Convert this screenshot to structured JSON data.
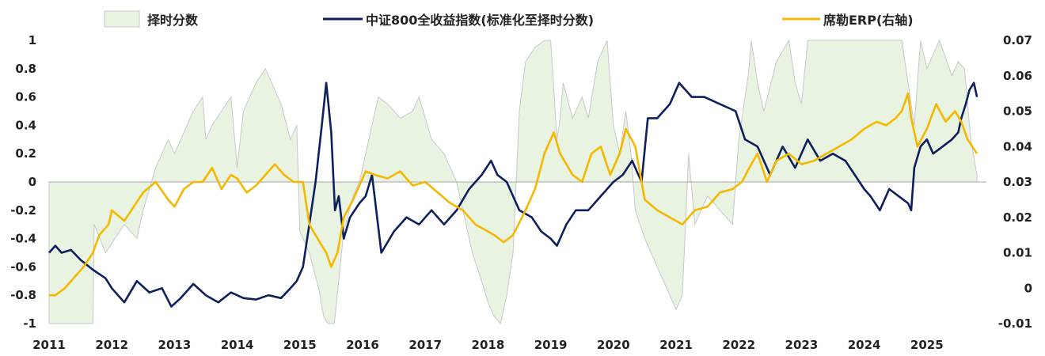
{
  "chart_data": {
    "type": "line",
    "title": "",
    "xlabel": "",
    "ylabel": "",
    "ylim": [
      -1,
      1
    ],
    "y2lim": [
      -0.01,
      0.07
    ],
    "grid": false,
    "legend_position": "top",
    "x_ticks": [
      "2011",
      "2012",
      "2013",
      "2014",
      "2015",
      "2016",
      "2017",
      "2018",
      "2019",
      "2020",
      "2021",
      "2022",
      "2023",
      "2024",
      "2025"
    ],
    "y_ticks": [
      "1",
      "0.8",
      "0.6",
      "0.4",
      "0.2",
      "0",
      "-0.2",
      "-0.4",
      "-0.6",
      "-0.8",
      "-1"
    ],
    "y2_ticks": [
      "0.07",
      "0.06",
      "0.05",
      "0.04",
      "0.03",
      "0.02",
      "0.01",
      "0",
      "-0.01"
    ],
    "colors": {
      "timing_fill": "#e8f3e2",
      "timing_stroke": "#c8c8c8",
      "csi800": "#0e1f5e",
      "erp": "#f5b800"
    },
    "series": [
      {
        "name": "择时分数",
        "kind": "area",
        "axis": "left",
        "x": [
          2011.0,
          2011.5,
          2011.7,
          2011.72,
          2011.9,
          2012.2,
          2012.4,
          2012.5,
          2012.7,
          2012.9,
          2013.0,
          2013.3,
          2013.45,
          2013.5,
          2013.6,
          2013.75,
          2013.9,
          2014.0,
          2014.1,
          2014.3,
          2014.45,
          2014.55,
          2014.7,
          2014.85,
          2014.95,
          2015.0,
          2015.15,
          2015.3,
          2015.38,
          2015.45,
          2015.55,
          2015.7,
          2015.85,
          2015.95,
          2016.1,
          2016.25,
          2016.4,
          2016.6,
          2016.8,
          2016.9,
          2017.0,
          2017.1,
          2017.3,
          2017.5,
          2017.6,
          2017.75,
          2017.9,
          2018.0,
          2018.1,
          2018.2,
          2018.3,
          2018.4,
          2018.5,
          2018.6,
          2018.75,
          2018.9,
          2019.0,
          2019.1,
          2019.15,
          2019.2,
          2019.35,
          2019.5,
          2019.6,
          2019.75,
          2019.9,
          2020.0,
          2020.1,
          2020.2,
          2020.28,
          2020.35,
          2020.5,
          2020.6,
          2020.7,
          2020.85,
          2021.0,
          2021.1,
          2021.15,
          2021.2,
          2021.3,
          2021.5,
          2021.7,
          2021.9,
          2022.0,
          2022.15,
          2022.2,
          2022.3,
          2022.4,
          2022.6,
          2022.8,
          2022.9,
          2023.0,
          2023.1,
          2023.3,
          2023.5,
          2023.6,
          2023.8,
          2024.0,
          2024.2,
          2024.4,
          2024.6,
          2024.8,
          2024.9,
          2025.0,
          2025.2,
          2025.4,
          2025.5,
          2025.6,
          2025.7,
          2025.8
        ],
        "values": [
          -1,
          -1,
          -1,
          -0.3,
          -0.5,
          -0.3,
          -0.4,
          -0.2,
          0.1,
          0.3,
          0.2,
          0.5,
          0.6,
          0.3,
          0.4,
          0.5,
          0.6,
          0.1,
          0.5,
          0.7,
          0.8,
          0.7,
          0.55,
          0.3,
          0.4,
          -0.35,
          -0.5,
          -0.75,
          -0.95,
          -1,
          -1,
          -0.35,
          -0.1,
          0.0,
          0.3,
          0.6,
          0.55,
          0.45,
          0.5,
          0.6,
          0.45,
          0.3,
          0.2,
          0.0,
          -0.2,
          -0.5,
          -0.7,
          -0.85,
          -0.95,
          -1,
          -0.8,
          -0.5,
          0.5,
          0.85,
          0.95,
          1,
          1,
          0.3,
          0.45,
          0.7,
          0.45,
          0.6,
          0.45,
          0.85,
          1,
          0.4,
          0.2,
          0.5,
          0.2,
          -0.2,
          -0.4,
          -0.5,
          -0.6,
          -0.75,
          -0.9,
          -0.8,
          -0.3,
          0.2,
          -0.3,
          -0.1,
          -0.2,
          -0.3,
          0.3,
          0.75,
          1,
          0.7,
          0.5,
          0.85,
          1,
          0.7,
          0.55,
          1,
          1,
          1,
          1,
          1,
          1,
          1,
          1,
          1,
          0.4,
          1,
          0.8,
          1,
          0.75,
          0.85,
          0.8,
          0.3,
          0.05
        ]
      },
      {
        "name": "中证800全收益指数(标准化至择时分数)",
        "kind": "line",
        "axis": "left",
        "x": [
          2011.0,
          2011.1,
          2011.2,
          2011.35,
          2011.5,
          2011.7,
          2011.9,
          2012.0,
          2012.2,
          2012.4,
          2012.6,
          2012.8,
          2012.95,
          2013.1,
          2013.3,
          2013.5,
          2013.7,
          2013.9,
          2014.1,
          2014.3,
          2014.5,
          2014.7,
          2014.85,
          2014.95,
          2015.05,
          2015.15,
          2015.25,
          2015.35,
          2015.42,
          2015.5,
          2015.56,
          2015.62,
          2015.7,
          2015.8,
          2015.95,
          2016.05,
          2016.15,
          2016.3,
          2016.5,
          2016.7,
          2016.9,
          2017.1,
          2017.3,
          2017.5,
          2017.7,
          2017.9,
          2018.05,
          2018.15,
          2018.3,
          2018.5,
          2018.7,
          2018.85,
          2019.0,
          2019.1,
          2019.25,
          2019.4,
          2019.6,
          2019.8,
          2020.0,
          2020.15,
          2020.3,
          2020.45,
          2020.55,
          2020.7,
          2020.9,
          2021.05,
          2021.15,
          2021.25,
          2021.45,
          2021.7,
          2021.95,
          2022.1,
          2022.3,
          2022.5,
          2022.7,
          2022.9,
          2023.1,
          2023.3,
          2023.5,
          2023.7,
          2023.85,
          2024.0,
          2024.1,
          2024.25,
          2024.4,
          2024.55,
          2024.7,
          2024.75,
          2024.8,
          2024.9,
          2025.0,
          2025.1,
          2025.25,
          2025.4,
          2025.5,
          2025.55,
          2025.62,
          2025.68,
          2025.75,
          2025.8
        ],
        "values": [
          -0.5,
          -0.45,
          -0.5,
          -0.48,
          -0.55,
          -0.62,
          -0.68,
          -0.75,
          -0.85,
          -0.7,
          -0.78,
          -0.75,
          -0.88,
          -0.82,
          -0.72,
          -0.8,
          -0.85,
          -0.78,
          -0.82,
          -0.83,
          -0.8,
          -0.82,
          -0.75,
          -0.7,
          -0.6,
          -0.3,
          0.0,
          0.4,
          0.7,
          0.35,
          -0.2,
          -0.1,
          -0.4,
          -0.25,
          -0.15,
          -0.1,
          0.05,
          -0.5,
          -0.35,
          -0.25,
          -0.3,
          -0.2,
          -0.3,
          -0.2,
          -0.05,
          0.05,
          0.15,
          0.05,
          0.0,
          -0.2,
          -0.25,
          -0.35,
          -0.4,
          -0.45,
          -0.3,
          -0.2,
          -0.2,
          -0.1,
          0.0,
          0.05,
          0.15,
          0.0,
          0.45,
          0.45,
          0.55,
          0.7,
          0.65,
          0.6,
          0.6,
          0.55,
          0.5,
          0.3,
          0.25,
          0.05,
          0.25,
          0.1,
          0.3,
          0.15,
          0.2,
          0.15,
          0.05,
          -0.05,
          -0.1,
          -0.2,
          -0.05,
          -0.1,
          -0.15,
          -0.2,
          0.1,
          0.25,
          0.3,
          0.2,
          0.25,
          0.3,
          0.35,
          0.45,
          0.55,
          0.65,
          0.7,
          0.6
        ]
      },
      {
        "name": "席勒ERP(右轴)",
        "kind": "line",
        "axis": "right",
        "x": [
          2011.0,
          2011.1,
          2011.25,
          2011.4,
          2011.55,
          2011.7,
          2011.8,
          2011.95,
          2012.0,
          2012.2,
          2012.35,
          2012.5,
          2012.7,
          2012.9,
          2013.0,
          2013.15,
          2013.3,
          2013.45,
          2013.6,
          2013.75,
          2013.9,
          2014.0,
          2014.15,
          2014.3,
          2014.45,
          2014.6,
          2014.75,
          2014.9,
          2015.05,
          2015.15,
          2015.25,
          2015.35,
          2015.42,
          2015.5,
          2015.6,
          2015.7,
          2015.85,
          2016.05,
          2016.2,
          2016.4,
          2016.6,
          2016.8,
          2017.0,
          2017.2,
          2017.4,
          2017.6,
          2017.8,
          2018.0,
          2018.1,
          2018.25,
          2018.4,
          2018.6,
          2018.75,
          2018.9,
          2019.05,
          2019.15,
          2019.35,
          2019.5,
          2019.65,
          2019.8,
          2019.95,
          2020.1,
          2020.2,
          2020.35,
          2020.45,
          2020.5,
          2020.7,
          2020.9,
          2021.1,
          2021.3,
          2021.5,
          2021.7,
          2021.9,
          2022.05,
          2022.2,
          2022.3,
          2022.45,
          2022.6,
          2022.8,
          2023.0,
          2023.2,
          2023.4,
          2023.6,
          2023.8,
          2024.0,
          2024.2,
          2024.35,
          2024.5,
          2024.6,
          2024.7,
          2024.75,
          2024.85,
          2025.0,
          2025.15,
          2025.3,
          2025.45,
          2025.55,
          2025.65,
          2025.8
        ],
        "values": [
          -0.002,
          -0.002,
          0.0,
          0.003,
          0.006,
          0.01,
          0.015,
          0.018,
          0.022,
          0.019,
          0.023,
          0.027,
          0.03,
          0.025,
          0.023,
          0.028,
          0.03,
          0.03,
          0.034,
          0.028,
          0.032,
          0.031,
          0.027,
          0.029,
          0.032,
          0.035,
          0.032,
          0.03,
          0.03,
          0.018,
          0.015,
          0.012,
          0.01,
          0.006,
          0.01,
          0.02,
          0.025,
          0.033,
          0.032,
          0.031,
          0.033,
          0.029,
          0.03,
          0.027,
          0.024,
          0.022,
          0.018,
          0.016,
          0.015,
          0.013,
          0.015,
          0.022,
          0.028,
          0.038,
          0.044,
          0.038,
          0.032,
          0.03,
          0.038,
          0.04,
          0.032,
          0.038,
          0.045,
          0.04,
          0.03,
          0.025,
          0.022,
          0.02,
          0.018,
          0.022,
          0.023,
          0.027,
          0.028,
          0.03,
          0.035,
          0.038,
          0.03,
          0.036,
          0.038,
          0.035,
          0.036,
          0.038,
          0.04,
          0.042,
          0.045,
          0.047,
          0.046,
          0.048,
          0.05,
          0.055,
          0.048,
          0.04,
          0.045,
          0.052,
          0.047,
          0.05,
          0.047,
          0.042,
          0.038
        ]
      }
    ]
  }
}
